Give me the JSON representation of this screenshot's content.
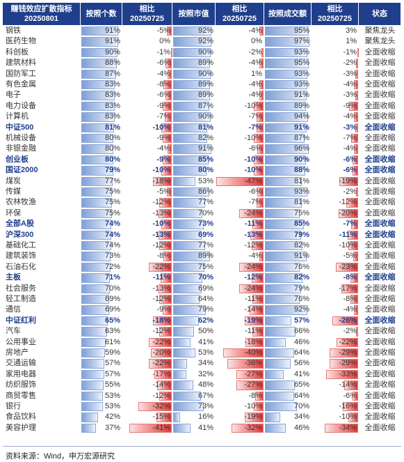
{
  "chart_data": {
    "type": "table",
    "columns": [
      {
        "line1": "赚钱效应扩散指标",
        "line2": "20250801"
      },
      {
        "line1": "按照个数",
        "line2": ""
      },
      {
        "line1": "相比",
        "line2": "20250725"
      },
      {
        "line1": "按照市值",
        "line2": ""
      },
      {
        "line1": "相比",
        "line2": "20250725"
      },
      {
        "line1": "按照成交额",
        "line2": ""
      },
      {
        "line1": "相比",
        "line2": "20250725"
      },
      {
        "line1": "状态",
        "line2": ""
      }
    ],
    "rows": [
      {
        "name": "钢铁",
        "count": 91,
        "count_chg": -5,
        "mcap": 92,
        "mcap_chg": -4,
        "turnover": 95,
        "turnover_chg": 3,
        "status": "聚焦龙头",
        "bold": false
      },
      {
        "name": "医药生物",
        "count": 91,
        "count_chg": 0,
        "mcap": 92,
        "mcap_chg": 0,
        "turnover": 97,
        "turnover_chg": 1,
        "status": "聚焦龙头",
        "bold": false
      },
      {
        "name": "科创板",
        "count": 90,
        "count_chg": -1,
        "mcap": 90,
        "mcap_chg": -2,
        "turnover": 93,
        "turnover_chg": -1,
        "status": "全面收缩",
        "bold": false
      },
      {
        "name": "建筑材料",
        "count": 88,
        "count_chg": -6,
        "mcap": 89,
        "mcap_chg": -4,
        "turnover": 95,
        "turnover_chg": -2,
        "status": "全面收缩",
        "bold": false
      },
      {
        "name": "国防军工",
        "count": 87,
        "count_chg": -4,
        "mcap": 90,
        "mcap_chg": 1,
        "turnover": 93,
        "turnover_chg": -3,
        "status": "全面收缩",
        "bold": false
      },
      {
        "name": "有色金属",
        "count": 83,
        "count_chg": -8,
        "mcap": 89,
        "mcap_chg": -4,
        "turnover": 93,
        "turnover_chg": -4,
        "status": "全面收缩",
        "bold": false
      },
      {
        "name": "电子",
        "count": 83,
        "count_chg": -6,
        "mcap": 89,
        "mcap_chg": -4,
        "turnover": 91,
        "turnover_chg": -3,
        "status": "全面收缩",
        "bold": false
      },
      {
        "name": "电力设备",
        "count": 83,
        "count_chg": -9,
        "mcap": 87,
        "mcap_chg": -10,
        "turnover": 89,
        "turnover_chg": -9,
        "status": "全面收缩",
        "bold": false
      },
      {
        "name": "计算机",
        "count": 83,
        "count_chg": -7,
        "mcap": 90,
        "mcap_chg": -7,
        "turnover": 94,
        "turnover_chg": -4,
        "status": "全面收缩",
        "bold": false
      },
      {
        "name": "中证500",
        "count": 81,
        "count_chg": -10,
        "mcap": 81,
        "mcap_chg": -7,
        "turnover": 91,
        "turnover_chg": -3,
        "status": "全面收缩",
        "bold": true
      },
      {
        "name": "机械设备",
        "count": 80,
        "count_chg": -9,
        "mcap": 82,
        "mcap_chg": -10,
        "turnover": 87,
        "turnover_chg": -7,
        "status": "全面收缩",
        "bold": false
      },
      {
        "name": "非银金融",
        "count": 80,
        "count_chg": -4,
        "mcap": 91,
        "mcap_chg": -6,
        "turnover": 96,
        "turnover_chg": -4,
        "status": "全面收缩",
        "bold": false
      },
      {
        "name": "创业板",
        "count": 80,
        "count_chg": -9,
        "mcap": 85,
        "mcap_chg": -10,
        "turnover": 90,
        "turnover_chg": -6,
        "status": "全面收缩",
        "bold": true
      },
      {
        "name": "国证2000",
        "count": 79,
        "count_chg": -10,
        "mcap": 80,
        "mcap_chg": -10,
        "turnover": 88,
        "turnover_chg": -6,
        "status": "全面收缩",
        "bold": true
      },
      {
        "name": "煤炭",
        "count": 77,
        "count_chg": -18,
        "mcap": 53,
        "mcap_chg": -47,
        "turnover": 81,
        "turnover_chg": -19,
        "status": "全面收缩",
        "bold": false
      },
      {
        "name": "传媒",
        "count": 75,
        "count_chg": -5,
        "mcap": 86,
        "mcap_chg": -6,
        "turnover": 93,
        "turnover_chg": -2,
        "status": "全面收缩",
        "bold": false
      },
      {
        "name": "农林牧渔",
        "count": 75,
        "count_chg": -12,
        "mcap": 77,
        "mcap_chg": -7,
        "turnover": 81,
        "turnover_chg": -12,
        "status": "全面收缩",
        "bold": false
      },
      {
        "name": "环保",
        "count": 75,
        "count_chg": -13,
        "mcap": 70,
        "mcap_chg": -24,
        "turnover": 75,
        "turnover_chg": -20,
        "status": "全面收缩",
        "bold": false
      },
      {
        "name": "全部A股",
        "count": 74,
        "count_chg": -10,
        "mcap": 73,
        "mcap_chg": -11,
        "turnover": 85,
        "turnover_chg": -7,
        "status": "全面收缩",
        "bold": true
      },
      {
        "name": "沪深300",
        "count": 74,
        "count_chg": -13,
        "mcap": 69,
        "mcap_chg": -13,
        "turnover": 79,
        "turnover_chg": -11,
        "status": "全面收缩",
        "bold": true
      },
      {
        "name": "基础化工",
        "count": 74,
        "count_chg": -12,
        "mcap": 77,
        "mcap_chg": -12,
        "turnover": 82,
        "turnover_chg": -10,
        "status": "全面收缩",
        "bold": false
      },
      {
        "name": "建筑装饰",
        "count": 73,
        "count_chg": -8,
        "mcap": 89,
        "mcap_chg": -4,
        "turnover": 91,
        "turnover_chg": -5,
        "status": "全面收缩",
        "bold": false
      },
      {
        "name": "石油石化",
        "count": 72,
        "count_chg": -22,
        "mcap": 75,
        "mcap_chg": -24,
        "turnover": 76,
        "turnover_chg": -23,
        "status": "全面收缩",
        "bold": false
      },
      {
        "name": "主板",
        "count": 71,
        "count_chg": -11,
        "mcap": 70,
        "mcap_chg": -12,
        "turnover": 82,
        "turnover_chg": -8,
        "status": "全面收缩",
        "bold": true
      },
      {
        "name": "社会服务",
        "count": 70,
        "count_chg": -13,
        "mcap": 69,
        "mcap_chg": -24,
        "turnover": 79,
        "turnover_chg": -17,
        "status": "全面收缩",
        "bold": false
      },
      {
        "name": "轻工制造",
        "count": 69,
        "count_chg": -12,
        "mcap": 64,
        "mcap_chg": -11,
        "turnover": 76,
        "turnover_chg": -8,
        "status": "全面收缩",
        "bold": false
      },
      {
        "name": "通信",
        "count": 69,
        "count_chg": -9,
        "mcap": 79,
        "mcap_chg": -14,
        "turnover": 92,
        "turnover_chg": -4,
        "status": "全面收缩",
        "bold": false
      },
      {
        "name": "中证红利",
        "count": 65,
        "count_chg": -18,
        "mcap": 62,
        "mcap_chg": -19,
        "turnover": 57,
        "turnover_chg": -26,
        "status": "全面收缩",
        "bold": true
      },
      {
        "name": "汽车",
        "count": 63,
        "count_chg": -12,
        "mcap": 50,
        "mcap_chg": -11,
        "turnover": 66,
        "turnover_chg": -2,
        "status": "全面收缩",
        "bold": false
      },
      {
        "name": "公用事业",
        "count": 61,
        "count_chg": -22,
        "mcap": 41,
        "mcap_chg": -18,
        "turnover": 46,
        "turnover_chg": -22,
        "status": "全面收缩",
        "bold": false
      },
      {
        "name": "房地产",
        "count": 59,
        "count_chg": -20,
        "mcap": 53,
        "mcap_chg": -40,
        "turnover": 64,
        "turnover_chg": -29,
        "status": "全面收缩",
        "bold": false
      },
      {
        "name": "交通运输",
        "count": 57,
        "count_chg": -22,
        "mcap": 34,
        "mcap_chg": -36,
        "turnover": 56,
        "turnover_chg": -29,
        "status": "全面收缩",
        "bold": false
      },
      {
        "name": "家用电器",
        "count": 57,
        "count_chg": -17,
        "mcap": 32,
        "mcap_chg": -27,
        "turnover": 41,
        "turnover_chg": -33,
        "status": "全面收缩",
        "bold": false
      },
      {
        "name": "纺织服饰",
        "count": 55,
        "count_chg": -14,
        "mcap": 48,
        "mcap_chg": -27,
        "turnover": 65,
        "turnover_chg": -14,
        "status": "全面收缩",
        "bold": false
      },
      {
        "name": "商贸零售",
        "count": 53,
        "count_chg": -12,
        "mcap": 67,
        "mcap_chg": -8,
        "turnover": 64,
        "turnover_chg": -6,
        "status": "全面收缩",
        "bold": false
      },
      {
        "name": "银行",
        "count": 53,
        "count_chg": -32,
        "mcap": 73,
        "mcap_chg": -10,
        "turnover": 70,
        "turnover_chg": -16,
        "status": "全面收缩",
        "bold": false
      },
      {
        "name": "食品饮料",
        "count": 42,
        "count_chg": -15,
        "mcap": 16,
        "mcap_chg": -19,
        "turnover": 34,
        "turnover_chg": -10,
        "status": "全面收缩",
        "bold": false
      },
      {
        "name": "美容护理",
        "count": 37,
        "count_chg": -41,
        "mcap": 41,
        "mcap_chg": -32,
        "turnover": 46,
        "turnover_chg": -34,
        "status": "全面收缩",
        "bold": false
      }
    ],
    "value_range": [
      0,
      100
    ],
    "change_range": [
      -47,
      0
    ]
  },
  "footer": {
    "source": "资料来源：Wind，申万宏源研究"
  }
}
